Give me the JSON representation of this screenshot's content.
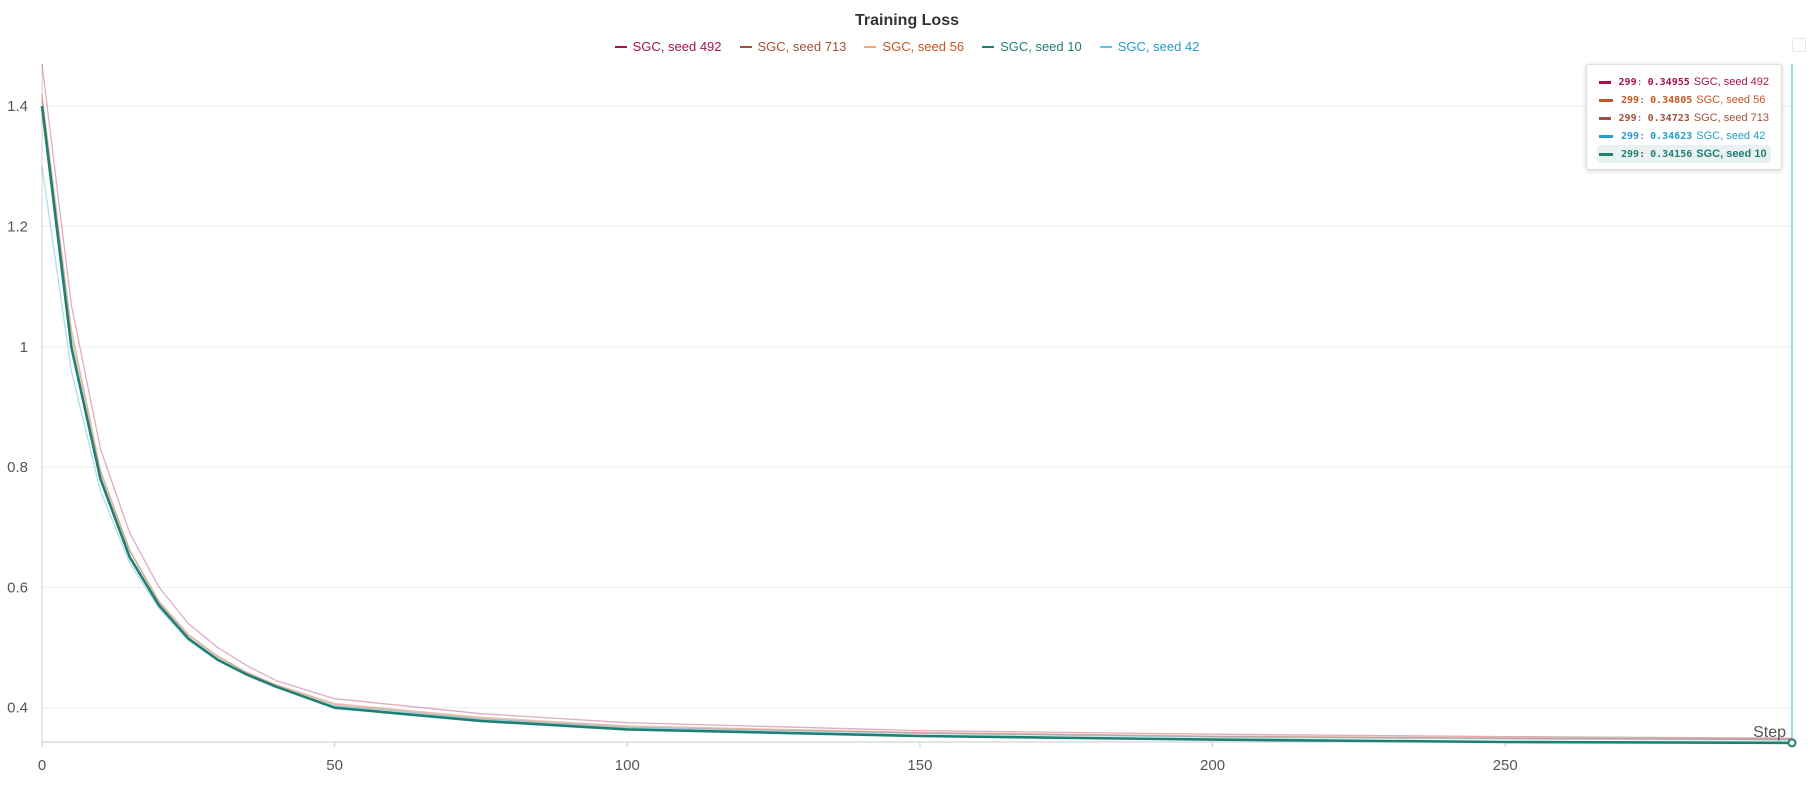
{
  "chart_data": {
    "type": "line",
    "title": "Training Loss",
    "xlabel": "Step",
    "ylabel": "",
    "xlim": [
      0,
      299
    ],
    "ylim": [
      0.343,
      1.47
    ],
    "xticks": [
      0,
      50,
      100,
      150,
      200,
      250
    ],
    "yticks": [
      0.4,
      0.6,
      0.8,
      1,
      1.2,
      1.4
    ],
    "xtick_labels": [
      "0",
      "50",
      "100",
      "150",
      "200",
      "250"
    ],
    "ytick_labels": [
      "0.4",
      "0.6",
      "0.8",
      "1",
      "1.2",
      "1.4"
    ],
    "grid": true,
    "legend_position": "top-center",
    "series": [
      {
        "name": "SGC, seed 492",
        "color": "#a3124f",
        "x": [
          0,
          5,
          10,
          15,
          20,
          25,
          30,
          35,
          40,
          50,
          75,
          100,
          150,
          200,
          250,
          299
        ],
        "y": [
          1.47,
          1.07,
          0.83,
          0.69,
          0.6,
          0.54,
          0.5,
          0.47,
          0.445,
          0.415,
          0.39,
          0.375,
          0.362,
          0.356,
          0.352,
          0.34955
        ]
      },
      {
        "name": "SGC, seed 713",
        "color": "#a0523a",
        "x": [
          0,
          5,
          10,
          15,
          20,
          25,
          30,
          35,
          40,
          50,
          75,
          100,
          150,
          200,
          250,
          299
        ],
        "y": [
          1.41,
          1.02,
          0.79,
          0.66,
          0.575,
          0.52,
          0.485,
          0.458,
          0.437,
          0.405,
          0.382,
          0.368,
          0.358,
          0.352,
          0.349,
          0.34723
        ]
      },
      {
        "name": "SGC, seed 56",
        "color": "#c4561e",
        "x": [
          0,
          5,
          10,
          15,
          20,
          25,
          30,
          35,
          40,
          50,
          75,
          100,
          150,
          200,
          250,
          299
        ],
        "y": [
          1.42,
          1.03,
          0.795,
          0.662,
          0.577,
          0.522,
          0.486,
          0.459,
          0.438,
          0.407,
          0.384,
          0.37,
          0.359,
          0.353,
          0.35,
          0.34805
        ]
      },
      {
        "name": "SGC, seed 10",
        "color": "#1e7f73",
        "x": [
          0,
          5,
          10,
          15,
          20,
          25,
          30,
          35,
          40,
          50,
          75,
          100,
          150,
          200,
          250,
          299
        ],
        "y": [
          1.4,
          1.0,
          0.78,
          0.65,
          0.57,
          0.515,
          0.48,
          0.455,
          0.435,
          0.4,
          0.378,
          0.364,
          0.353,
          0.347,
          0.343,
          0.34156
        ]
      },
      {
        "name": "SGC, seed 42",
        "color": "#229ec7",
        "x": [
          0,
          5,
          10,
          15,
          20,
          25,
          30,
          35,
          40,
          50,
          75,
          100,
          150,
          200,
          250,
          299
        ],
        "y": [
          1.3,
          0.96,
          0.76,
          0.64,
          0.565,
          0.512,
          0.478,
          0.454,
          0.434,
          0.403,
          0.381,
          0.367,
          0.357,
          0.351,
          0.348,
          0.34623
        ]
      }
    ],
    "hover": {
      "step": 299,
      "entries": [
        {
          "step": "299",
          "value": "0.34955",
          "name": "SGC, seed 492",
          "color": "#a3124f",
          "highlight": false
        },
        {
          "step": "299",
          "value": "0.34805",
          "name": "SGC, seed 56",
          "color": "#c4561e",
          "highlight": false
        },
        {
          "step": "299",
          "value": "0.34723",
          "name": "SGC, seed 713",
          "color": "#a0523a",
          "highlight": false
        },
        {
          "step": "299",
          "value": "0.34623",
          "name": "SGC, seed 42",
          "color": "#229ec7",
          "highlight": false
        },
        {
          "step": "299",
          "value": "0.34156",
          "name": "SGC, seed 10",
          "color": "#1e7f73",
          "highlight": true
        }
      ]
    }
  }
}
